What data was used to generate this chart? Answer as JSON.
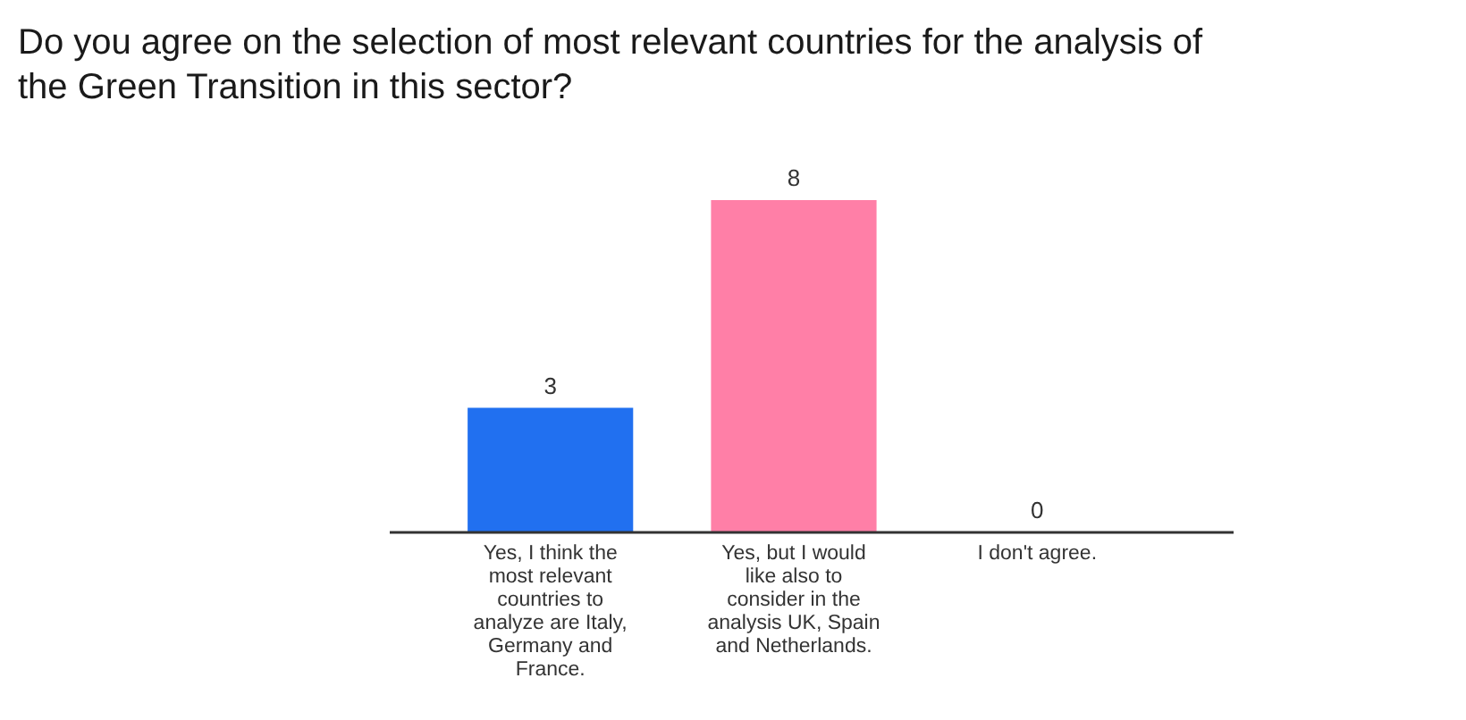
{
  "chart_data": {
    "type": "bar",
    "title": "Do you agree on the selection of most relevant countries for the analysis of the Green Transition in this sector?",
    "categories": [
      "Yes, I think the most relevant countries to analyze are Italy, Germany and France.",
      "Yes, but I would like also to consider in the analysis UK, Spain and Netherlands.",
      "I don't agree."
    ],
    "values": [
      3,
      8,
      0
    ],
    "colors": [
      "#2170f0",
      "#ff7fa7",
      "#2170f0"
    ],
    "data_labels": true
  }
}
